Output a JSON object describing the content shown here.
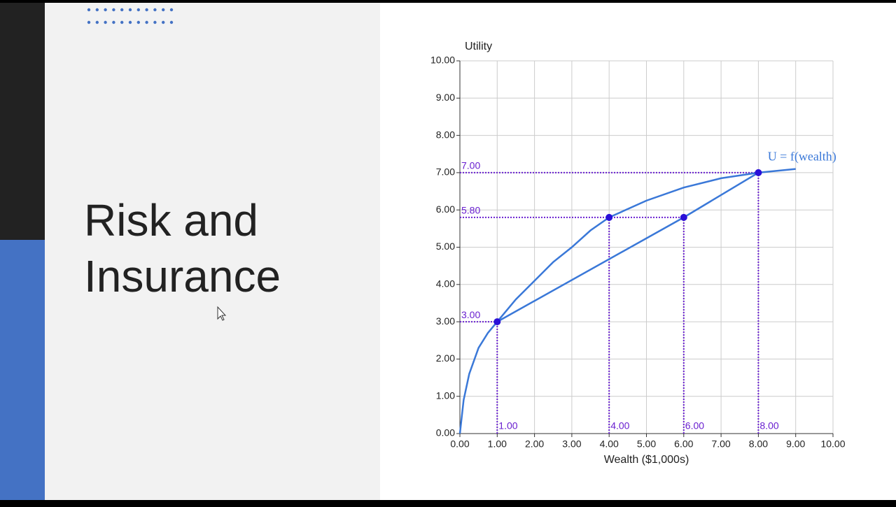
{
  "slide": {
    "title_lines": [
      "Risk and",
      "Insurance"
    ]
  },
  "chart_data": {
    "type": "line",
    "ylabel": "Utility",
    "xlabel": "Wealth ($1,000s)",
    "xlim": [
      0,
      10
    ],
    "ylim": [
      0,
      10
    ],
    "xticks": [
      {
        "value": 0,
        "label": "0.00"
      },
      {
        "value": 1,
        "label": "1.00"
      },
      {
        "value": 2,
        "label": "2.00"
      },
      {
        "value": 3,
        "label": "3.00"
      },
      {
        "value": 4,
        "label": "4.00"
      },
      {
        "value": 5,
        "label": "5.00"
      },
      {
        "value": 6,
        "label": "6.00"
      },
      {
        "value": 7,
        "label": "7.00"
      },
      {
        "value": 8,
        "label": "8.00"
      },
      {
        "value": 9,
        "label": "9.00"
      },
      {
        "value": 10,
        "label": "10.00"
      }
    ],
    "yticks": [
      {
        "value": 0,
        "label": "0.00"
      },
      {
        "value": 1,
        "label": "1.00"
      },
      {
        "value": 2,
        "label": "2.00"
      },
      {
        "value": 3,
        "label": "3.00"
      },
      {
        "value": 4,
        "label": "4.00"
      },
      {
        "value": 5,
        "label": "5.00"
      },
      {
        "value": 6,
        "label": "6.00"
      },
      {
        "value": 7,
        "label": "7.00"
      },
      {
        "value": 8,
        "label": "8.00"
      },
      {
        "value": 9,
        "label": "9.00"
      },
      {
        "value": 10,
        "label": "10.00"
      }
    ],
    "grid": true,
    "series": [
      {
        "name": "U = f(wealth)",
        "color": "#3a78d8",
        "x": [
          0,
          0.1,
          0.25,
          0.5,
          0.75,
          1,
          1.5,
          2,
          2.5,
          3,
          3.5,
          4,
          5,
          6,
          7,
          8,
          9
        ],
        "values": [
          0,
          0.9,
          1.6,
          2.3,
          2.7,
          3,
          3.6,
          4.1,
          4.6,
          5.0,
          5.45,
          5.8,
          6.25,
          6.6,
          6.85,
          7.0,
          7.1
        ]
      },
      {
        "color": "#3a78d8",
        "x": [
          1,
          6,
          8
        ],
        "values": [
          3,
          5.8,
          7
        ]
      }
    ],
    "points": {
      "color": "#2a10d8",
      "x": [
        1,
        4,
        6,
        8
      ],
      "values": [
        3,
        5.8,
        5.8,
        7
      ]
    },
    "guide_color": "#6a20d0",
    "y_guides": [
      {
        "value": 7,
        "label": "7.00"
      },
      {
        "value": 5.8,
        "label": "5.80"
      },
      {
        "value": 3,
        "label": "3.00"
      }
    ],
    "x_guides": [
      {
        "value": 1,
        "label": "1.00"
      },
      {
        "value": 4,
        "label": "4.00"
      },
      {
        "value": 6,
        "label": "6.00"
      },
      {
        "value": 8,
        "label": "8.00"
      }
    ]
  }
}
